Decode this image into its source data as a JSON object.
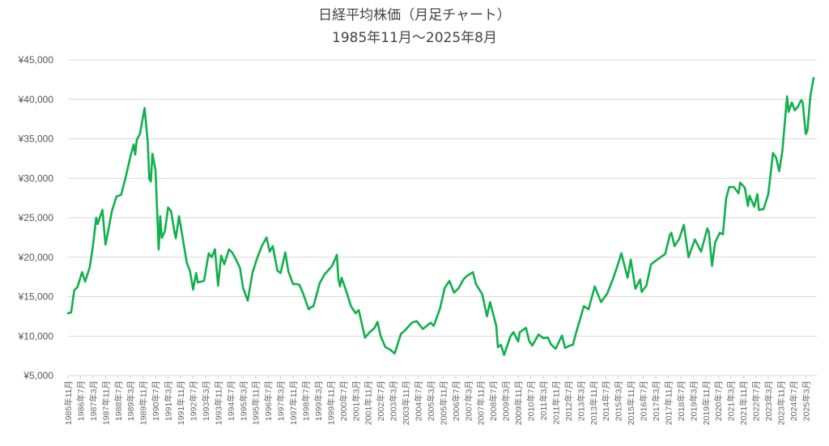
{
  "chart_data": {
    "type": "line",
    "title": "日経平均株価（月足チャート）",
    "subtitle": "1985年11月～2025年8月",
    "xlabel": "",
    "ylabel": "",
    "ylim": [
      5000,
      45000
    ],
    "y_ticks": [
      5000,
      10000,
      15000,
      20000,
      25000,
      30000,
      35000,
      40000,
      45000
    ],
    "y_tick_labels": [
      "¥5,000",
      "¥10,000",
      "¥15,000",
      "¥20,000",
      "¥25,000",
      "¥30,000",
      "¥35,000",
      "¥40,000",
      "¥45,000"
    ],
    "grid": true,
    "legend": "none",
    "line_color": "#10b04c",
    "x_start": "1985-11",
    "x_end": "2025-08",
    "x_tick_step_months": 8,
    "x_tick_labels": [
      "1985年11月",
      "1986年7月",
      "1987年3月",
      "1987年11月",
      "1988年7月",
      "1989年3月",
      "1989年11月",
      "1990年7月",
      "1991年3月",
      "1991年11月",
      "1992年7月",
      "1993年3月",
      "1993年11月",
      "1994年7月",
      "1995年3月",
      "1995年11月",
      "1996年7月",
      "1997年3月",
      "1997年11月",
      "1998年7月",
      "1999年3月",
      "1999年11月",
      "2000年7月",
      "2001年3月",
      "2001年11月",
      "2002年7月",
      "2003年3月",
      "2003年11月",
      "2004年7月",
      "2005年3月",
      "2005年11月",
      "2006年7月",
      "2007年3月",
      "2007年11月",
      "2008年7月",
      "2009年3月",
      "2009年11月",
      "2010年7月",
      "2011年3月",
      "2011年11月",
      "2012年7月",
      "2013年3月",
      "2013年11月",
      "2014年7月",
      "2015年3月",
      "2015年11月",
      "2016年7月",
      "2017年3月",
      "2017年11月",
      "2018年7月",
      "2019年3月",
      "2019年11月",
      "2020年7月",
      "2021年3月",
      "2021年11月",
      "2022年7月",
      "2023年3月",
      "2023年11月",
      "2024年7月",
      "2025年3月"
    ],
    "series": [
      {
        "name": "日経平均株価",
        "points": [
          [
            "1985-11",
            12900
          ],
          [
            "1986-01",
            13000
          ],
          [
            "1986-03",
            15800
          ],
          [
            "1986-05",
            16200
          ],
          [
            "1986-08",
            18100
          ],
          [
            "1986-10",
            16900
          ],
          [
            "1987-01",
            18800
          ],
          [
            "1987-03",
            21500
          ],
          [
            "1987-05",
            25000
          ],
          [
            "1987-06",
            24200
          ],
          [
            "1987-09",
            26000
          ],
          [
            "1987-11",
            21600
          ],
          [
            "1988-01",
            23600
          ],
          [
            "1988-03",
            25800
          ],
          [
            "1988-06",
            27700
          ],
          [
            "1988-09",
            27900
          ],
          [
            "1988-12",
            30200
          ],
          [
            "1989-03",
            32800
          ],
          [
            "1989-05",
            34300
          ],
          [
            "1989-06",
            33000
          ],
          [
            "1989-07",
            34900
          ],
          [
            "1989-09",
            35600
          ],
          [
            "1989-12",
            38900
          ],
          [
            "1990-02",
            34600
          ],
          [
            "1990-03",
            29900
          ],
          [
            "1990-04",
            29600
          ],
          [
            "1990-05",
            33100
          ],
          [
            "1990-07",
            31000
          ],
          [
            "1990-09",
            20980
          ],
          [
            "1990-10",
            25200
          ],
          [
            "1990-11",
            22450
          ],
          [
            "1991-01",
            23300
          ],
          [
            "1991-03",
            26300
          ],
          [
            "1991-05",
            25800
          ],
          [
            "1991-07",
            23300
          ],
          [
            "1991-08",
            22400
          ],
          [
            "1991-10",
            25200
          ],
          [
            "1991-12",
            22900
          ],
          [
            "1992-03",
            19300
          ],
          [
            "1992-05",
            18300
          ],
          [
            "1992-07",
            15900
          ],
          [
            "1992-09",
            18000
          ],
          [
            "1992-10",
            16800
          ],
          [
            "1992-12",
            16900
          ],
          [
            "1993-02",
            17000
          ],
          [
            "1993-05",
            20500
          ],
          [
            "1993-07",
            20000
          ],
          [
            "1993-09",
            21000
          ],
          [
            "1993-11",
            16400
          ],
          [
            "1994-01",
            20200
          ],
          [
            "1994-03",
            19100
          ],
          [
            "1994-06",
            21000
          ],
          [
            "1994-08",
            20600
          ],
          [
            "1994-10",
            19900
          ],
          [
            "1995-01",
            18650
          ],
          [
            "1995-03",
            16100
          ],
          [
            "1995-06",
            14500
          ],
          [
            "1995-09",
            18000
          ],
          [
            "1995-12",
            19870
          ],
          [
            "1996-03",
            21400
          ],
          [
            "1996-06",
            22500
          ],
          [
            "1996-08",
            20700
          ],
          [
            "1996-10",
            21400
          ],
          [
            "1997-01",
            18300
          ],
          [
            "1997-03",
            18000
          ],
          [
            "1997-06",
            20600
          ],
          [
            "1997-08",
            18200
          ],
          [
            "1997-11",
            16600
          ],
          [
            "1998-01",
            16600
          ],
          [
            "1998-03",
            16500
          ],
          [
            "1998-05",
            15600
          ],
          [
            "1998-09",
            13400
          ],
          [
            "1998-10",
            13600
          ],
          [
            "1998-12",
            13800
          ],
          [
            "1999-01",
            14500
          ],
          [
            "1999-04",
            16700
          ],
          [
            "1999-07",
            17800
          ],
          [
            "1999-12",
            18900
          ],
          [
            "2000-03",
            20300
          ],
          [
            "2000-04",
            17200
          ],
          [
            "2000-05",
            16300
          ],
          [
            "2000-06",
            17400
          ],
          [
            "2000-09",
            15700
          ],
          [
            "2000-12",
            13800
          ],
          [
            "2001-03",
            12900
          ],
          [
            "2001-05",
            13300
          ],
          [
            "2001-09",
            9800
          ],
          [
            "2001-12",
            10500
          ],
          [
            "2002-03",
            11000
          ],
          [
            "2002-05",
            11800
          ],
          [
            "2002-07",
            10000
          ],
          [
            "2002-10",
            8600
          ],
          [
            "2003-01",
            8300
          ],
          [
            "2003-04",
            7800
          ],
          [
            "2003-08",
            10300
          ],
          [
            "2003-10",
            10600
          ],
          [
            "2004-03",
            11700
          ],
          [
            "2004-06",
            11900
          ],
          [
            "2004-10",
            10900
          ],
          [
            "2005-03",
            11700
          ],
          [
            "2005-05",
            11300
          ],
          [
            "2005-09",
            13500
          ],
          [
            "2005-12",
            16100
          ],
          [
            "2006-03",
            17000
          ],
          [
            "2006-06",
            15500
          ],
          [
            "2006-09",
            16100
          ],
          [
            "2006-12",
            17200
          ],
          [
            "2007-02",
            17600
          ],
          [
            "2007-06",
            18100
          ],
          [
            "2007-08",
            16600
          ],
          [
            "2007-12",
            15300
          ],
          [
            "2008-03",
            12500
          ],
          [
            "2008-05",
            14300
          ],
          [
            "2008-09",
            11300
          ],
          [
            "2008-10",
            8600
          ],
          [
            "2008-12",
            8900
          ],
          [
            "2009-02",
            7600
          ],
          [
            "2009-06",
            9950
          ],
          [
            "2009-08",
            10500
          ],
          [
            "2009-11",
            9300
          ],
          [
            "2009-12",
            10500
          ],
          [
            "2010-04",
            11050
          ],
          [
            "2010-06",
            9400
          ],
          [
            "2010-08",
            8800
          ],
          [
            "2010-12",
            10200
          ],
          [
            "2011-03",
            9750
          ],
          [
            "2011-06",
            9800
          ],
          [
            "2011-08",
            8950
          ],
          [
            "2011-11",
            8400
          ],
          [
            "2012-03",
            10080
          ],
          [
            "2012-05",
            8500
          ],
          [
            "2012-08",
            8800
          ],
          [
            "2012-10",
            8900
          ],
          [
            "2012-12",
            10400
          ],
          [
            "2013-03",
            12400
          ],
          [
            "2013-05",
            13800
          ],
          [
            "2013-08",
            13400
          ],
          [
            "2013-12",
            16300
          ],
          [
            "2014-04",
            14300
          ],
          [
            "2014-08",
            15400
          ],
          [
            "2014-12",
            17450
          ],
          [
            "2015-03",
            19200
          ],
          [
            "2015-05",
            20500
          ],
          [
            "2015-09",
            17400
          ],
          [
            "2015-11",
            19700
          ],
          [
            "2016-02",
            16000
          ],
          [
            "2016-05",
            17200
          ],
          [
            "2016-06",
            15600
          ],
          [
            "2016-09",
            16400
          ],
          [
            "2016-12",
            19100
          ],
          [
            "2017-06",
            20000
          ],
          [
            "2017-09",
            20400
          ],
          [
            "2017-12",
            22800
          ],
          [
            "2018-01",
            23100
          ],
          [
            "2018-03",
            21400
          ],
          [
            "2018-06",
            22300
          ],
          [
            "2018-09",
            24100
          ],
          [
            "2018-12",
            20000
          ],
          [
            "2019-04",
            22250
          ],
          [
            "2019-08",
            20700
          ],
          [
            "2019-12",
            23650
          ],
          [
            "2020-01",
            23200
          ],
          [
            "2020-03",
            18900
          ],
          [
            "2020-05",
            21900
          ],
          [
            "2020-08",
            23100
          ],
          [
            "2020-10",
            22900
          ],
          [
            "2020-12",
            27400
          ],
          [
            "2021-02",
            28900
          ],
          [
            "2021-05",
            28900
          ],
          [
            "2021-08",
            28100
          ],
          [
            "2021-09",
            29450
          ],
          [
            "2021-12",
            28800
          ],
          [
            "2022-02",
            26500
          ],
          [
            "2022-03",
            27800
          ],
          [
            "2022-06",
            26400
          ],
          [
            "2022-08",
            28000
          ],
          [
            "2022-09",
            26000
          ],
          [
            "2022-12",
            26100
          ],
          [
            "2023-03",
            28000
          ],
          [
            "2023-06",
            33200
          ],
          [
            "2023-08",
            32600
          ],
          [
            "2023-10",
            30900
          ],
          [
            "2023-12",
            33460
          ],
          [
            "2024-03",
            40370
          ],
          [
            "2024-04",
            38400
          ],
          [
            "2024-06",
            39600
          ],
          [
            "2024-07",
            39100
          ],
          [
            "2024-08",
            38600
          ],
          [
            "2024-10",
            39100
          ],
          [
            "2024-12",
            39900
          ],
          [
            "2025-01",
            39600
          ],
          [
            "2025-03",
            35600
          ],
          [
            "2025-04",
            36000
          ],
          [
            "2025-06",
            40500
          ],
          [
            "2025-08",
            42700
          ]
        ]
      }
    ]
  }
}
